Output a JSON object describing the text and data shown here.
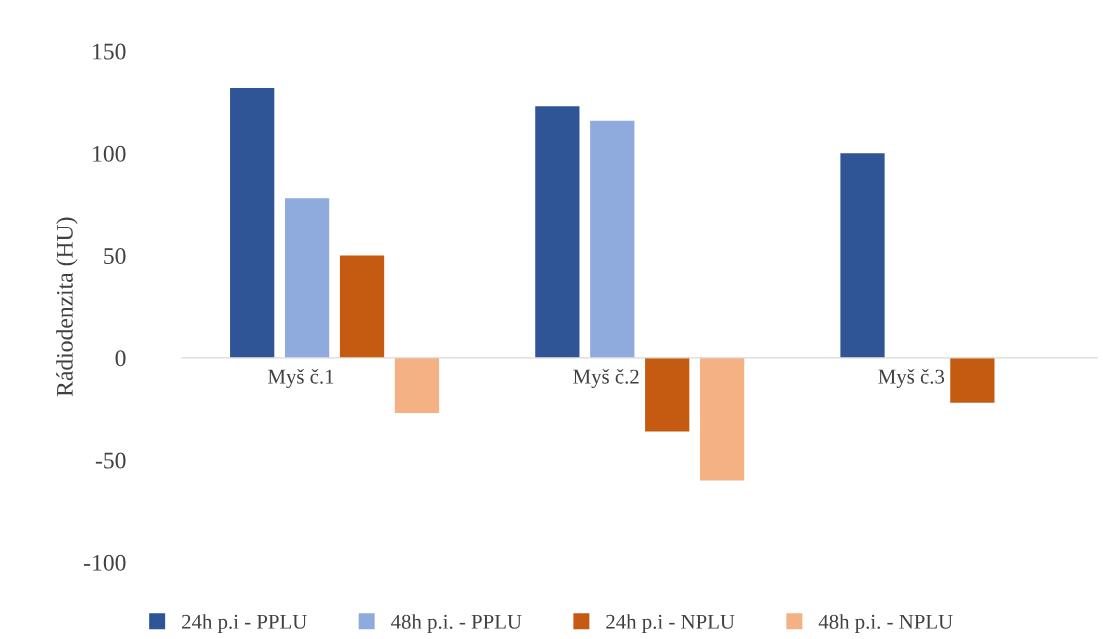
{
  "chart_data": {
    "type": "bar",
    "ylabel": "Rádiodenzita (HU)",
    "categories": [
      "Myš č.1",
      "Myš č.2",
      "Myš č.3"
    ],
    "series": [
      {
        "name": "24h p.i - PPLU",
        "color": "#2f5597",
        "values": [
          132,
          123,
          100
        ]
      },
      {
        "name": "48h p.i. - PPLU",
        "color": "#8faadc",
        "values": [
          78,
          116,
          null
        ]
      },
      {
        "name": "24h p.i - NPLU",
        "color": "#c55a11",
        "values": [
          50,
          -36,
          -22
        ]
      },
      {
        "name": "48h p.i. - NPLU",
        "color": "#f4b183",
        "values": [
          -27,
          -60,
          null
        ]
      }
    ],
    "ylim": [
      -100,
      150
    ],
    "yticks": [
      {
        "value": -100,
        "label": "-100"
      },
      {
        "value": -50,
        "label": "-50"
      },
      0,
      50,
      100,
      150
    ],
    "grid": false,
    "legend": "bottom"
  }
}
